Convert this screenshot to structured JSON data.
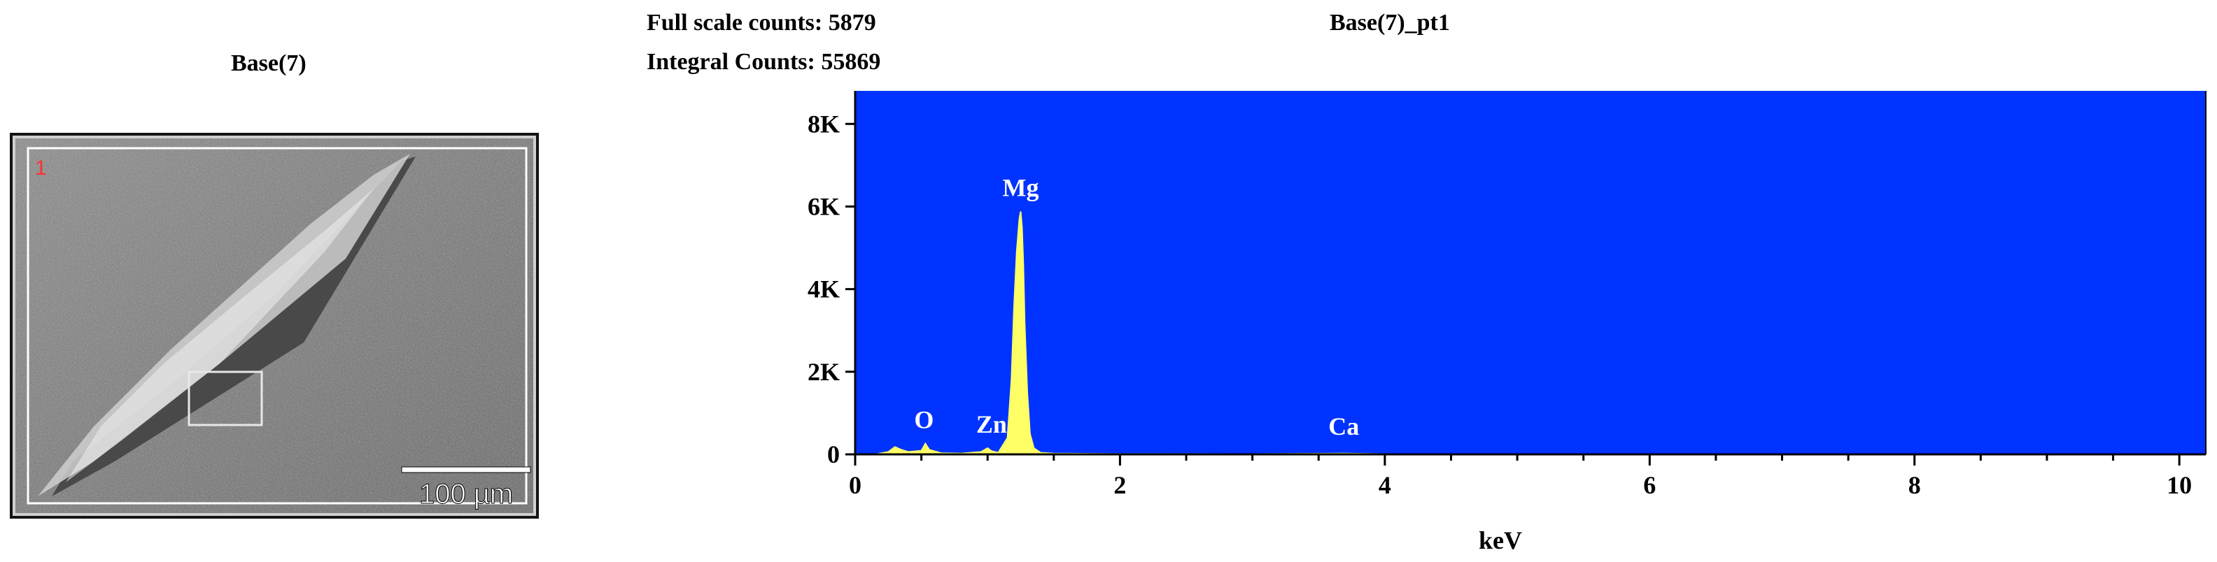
{
  "sem": {
    "title": "Base(7)",
    "region_label": "1",
    "scale_bar_label": "100 µm"
  },
  "header": {
    "full_scale": "Full scale counts: 5879",
    "integral": "Integral Counts: 55869"
  },
  "chart_data": {
    "type": "line",
    "title": "Base(7)_pt1",
    "xlabel": "keV",
    "ylabel": "",
    "xlim": [
      0,
      10.2
    ],
    "ylim": [
      0,
      8800
    ],
    "x_ticks": [
      0,
      2,
      4,
      6,
      8,
      10
    ],
    "x_tick_labels": [
      "0",
      "2",
      "4",
      "6",
      "8",
      "10"
    ],
    "y_ticks": [
      0,
      2000,
      4000,
      6000,
      8000
    ],
    "y_tick_labels": [
      "0",
      "2K",
      "4K",
      "6K",
      "8K"
    ],
    "background_color": "#0033ff",
    "fill_color": "#ffff66",
    "grid": false,
    "spectrum": {
      "x": [
        0.15,
        0.25,
        0.3,
        0.35,
        0.4,
        0.5,
        0.53,
        0.56,
        0.65,
        0.8,
        0.95,
        1.0,
        1.03,
        1.08,
        1.15,
        1.18,
        1.2,
        1.22,
        1.24,
        1.25,
        1.26,
        1.27,
        1.28,
        1.3,
        1.32,
        1.35,
        1.4,
        1.5,
        2.0,
        3.0,
        3.69,
        4.0,
        6.0,
        8.0,
        10.0,
        10.2
      ],
      "y": [
        0,
        60,
        180,
        110,
        60,
        90,
        260,
        110,
        30,
        20,
        60,
        150,
        80,
        40,
        400,
        1800,
        3600,
        4900,
        5700,
        5879,
        5500,
        4600,
        3200,
        1500,
        500,
        150,
        40,
        20,
        10,
        8,
        20,
        8,
        6,
        5,
        4,
        0
      ]
    },
    "peaks": [
      {
        "label": "O",
        "x": 0.52,
        "y": 260
      },
      {
        "label": "Zn",
        "x": 1.03,
        "y": 150
      },
      {
        "label": "Mg",
        "x": 1.25,
        "y": 5879
      },
      {
        "label": "Ca",
        "x": 3.69,
        "y": 20
      }
    ]
  }
}
